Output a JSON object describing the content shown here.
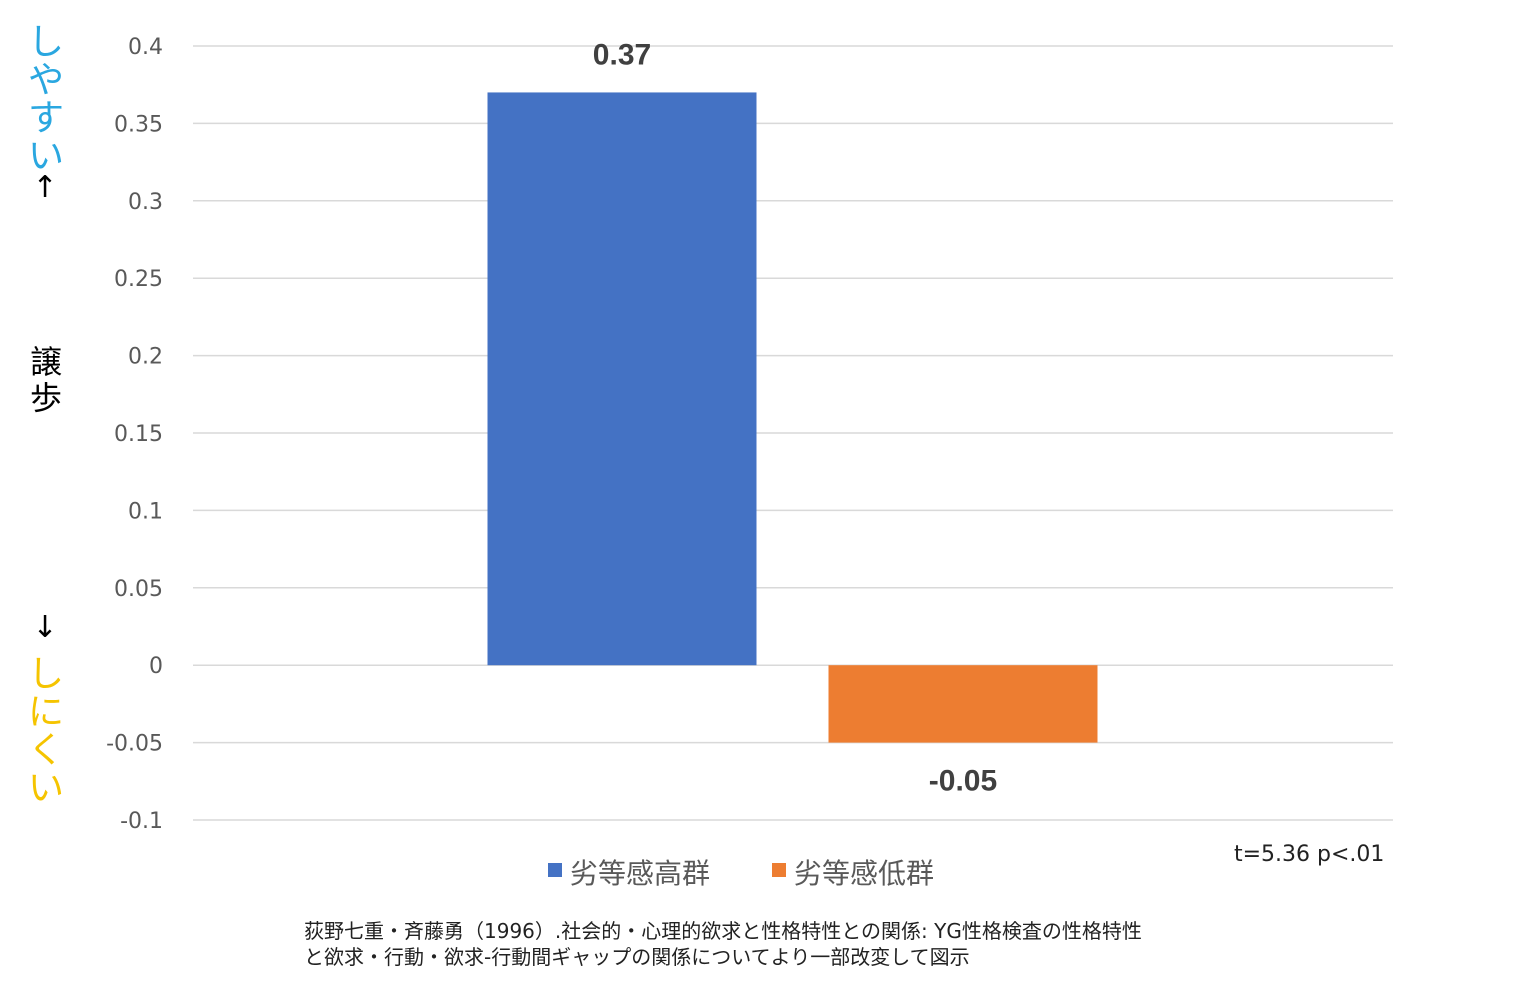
{
  "chart_data": {
    "type": "bar",
    "categories": [
      "劣等感高群",
      "劣等感低群"
    ],
    "series": [
      {
        "name": "劣等感高群",
        "value": 0.37,
        "color": "#4472C4",
        "data_label": "0.37"
      },
      {
        "name": "劣等感低群",
        "value": -0.05,
        "color": "#ED7D31",
        "data_label": "-0.05"
      }
    ],
    "ylabel": "譲歩",
    "ylim": [
      -0.1,
      0.4
    ],
    "yticks": [
      "0.4",
      "0.35",
      "0.3",
      "0.25",
      "0.2",
      "0.15",
      "0.1",
      "0.05",
      "0",
      "-0.05",
      "-0.1"
    ],
    "ytick_values": [
      0.4,
      0.35,
      0.3,
      0.25,
      0.2,
      0.15,
      0.1,
      0.05,
      0,
      -0.05,
      -0.1
    ],
    "grid": true,
    "legend_position": "bottom"
  },
  "axis_annotations": {
    "upper_label": "しやすい",
    "upper_arrow": "↑",
    "upper_color": "#2AA7E0",
    "lower_arrow": "↓",
    "lower_label": "しにくい",
    "lower_color": "#F5C400"
  },
  "stats_note": "t=5.36 p<.01",
  "citation": {
    "line1": "荻野七重・斉藤勇（1996）.社会的・心理的欲求と性格特性との関係: YG性格検査の性格特性",
    "line2": "と欲求・行動・欲求-行動間ギャップの関係についてより一部改変して図示"
  },
  "colors": {
    "gridline": "#D9D9D9",
    "tick_text": "#595959",
    "data_label": "#404040",
    "legend_text": "#595959"
  }
}
